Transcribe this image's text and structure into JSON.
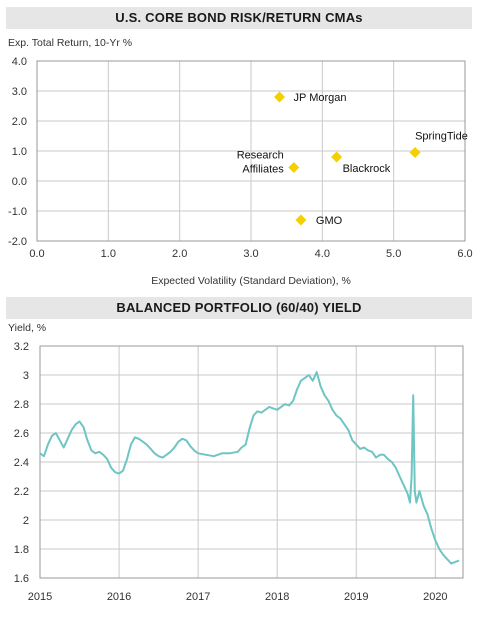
{
  "chart_data": [
    {
      "type": "scatter",
      "title": "U.S. CORE BOND RISK/RETURN CMAs",
      "ylabel": "Exp. Total Return, 10-Yr %",
      "xlabel": "Expected Volatility (Standard Deviation), %",
      "xlim": [
        0,
        6
      ],
      "ylim": [
        -2,
        4
      ],
      "x_ticks": [
        "0.0",
        "1.0",
        "2.0",
        "3.0",
        "4.0",
        "5.0",
        "6.0"
      ],
      "y_ticks": [
        "-2.0",
        "-1.0",
        "0.0",
        "1.0",
        "2.0",
        "3.0",
        "4.0"
      ],
      "grid": true,
      "marker_color": "#f5d000",
      "points": [
        {
          "name": "JP Morgan",
          "label_lines": [
            "JP Morgan"
          ],
          "x": 3.4,
          "y": 2.8
        },
        {
          "name": "SpringTide",
          "label_lines": [
            "SpringTide"
          ],
          "x": 5.3,
          "y": 0.95
        },
        {
          "name": "Blackrock",
          "label_lines": [
            "Blackrock"
          ],
          "x": 4.2,
          "y": 0.8
        },
        {
          "name": "Research Affiliates",
          "label_lines": [
            "Research",
            "Affiliates"
          ],
          "x": 3.6,
          "y": 0.45
        },
        {
          "name": "GMO",
          "label_lines": [
            "GMO"
          ],
          "x": 3.7,
          "y": -1.3
        }
      ]
    },
    {
      "type": "line",
      "title": "BALANCED PORTFOLIO (60/40) YIELD",
      "ylabel": "Yield, %",
      "xlabel": "",
      "xlim": [
        2015.0,
        2020.35
      ],
      "ylim": [
        1.6,
        3.2
      ],
      "x_ticks": [
        "2015",
        "2016",
        "2017",
        "2018",
        "2019",
        "2020"
      ],
      "y_ticks": [
        "1.6",
        "1.8",
        "2",
        "2.2",
        "2.4",
        "2.6",
        "2.8",
        "3",
        "3.2"
      ],
      "grid": true,
      "line_color": "#6fc5c4",
      "x": [
        2015.0,
        2015.05,
        2015.1,
        2015.15,
        2015.2,
        2015.25,
        2015.3,
        2015.35,
        2015.4,
        2015.45,
        2015.5,
        2015.55,
        2015.6,
        2015.65,
        2015.7,
        2015.75,
        2015.8,
        2015.85,
        2015.9,
        2015.95,
        2016.0,
        2016.05,
        2016.1,
        2016.15,
        2016.2,
        2016.25,
        2016.3,
        2016.35,
        2016.4,
        2016.45,
        2016.5,
        2016.55,
        2016.6,
        2016.65,
        2016.7,
        2016.75,
        2016.8,
        2016.85,
        2016.9,
        2016.95,
        2017.0,
        2017.1,
        2017.2,
        2017.3,
        2017.4,
        2017.5,
        2017.55,
        2017.6,
        2017.65,
        2017.7,
        2017.75,
        2017.8,
        2017.85,
        2017.9,
        2017.95,
        2018.0,
        2018.05,
        2018.1,
        2018.15,
        2018.2,
        2018.25,
        2018.3,
        2018.35,
        2018.4,
        2018.45,
        2018.5,
        2018.55,
        2018.6,
        2018.65,
        2018.7,
        2018.75,
        2018.8,
        2018.85,
        2018.9,
        2018.95,
        2019.0,
        2019.05,
        2019.1,
        2019.15,
        2019.2,
        2019.25,
        2019.3,
        2019.35,
        2019.4,
        2019.45,
        2019.5,
        2019.55,
        2019.6,
        2019.65,
        2019.68,
        2019.7,
        2019.72,
        2019.74,
        2019.76,
        2019.8,
        2019.85,
        2019.9,
        2019.95,
        2020.0,
        2020.05,
        2020.1,
        2020.15,
        2020.2,
        2020.25,
        2020.3
      ],
      "values": [
        2.46,
        2.44,
        2.52,
        2.58,
        2.6,
        2.55,
        2.5,
        2.56,
        2.62,
        2.66,
        2.68,
        2.64,
        2.55,
        2.48,
        2.46,
        2.47,
        2.45,
        2.42,
        2.36,
        2.33,
        2.32,
        2.34,
        2.42,
        2.52,
        2.57,
        2.56,
        2.54,
        2.52,
        2.49,
        2.46,
        2.44,
        2.43,
        2.45,
        2.47,
        2.5,
        2.54,
        2.56,
        2.55,
        2.51,
        2.48,
        2.46,
        2.45,
        2.44,
        2.46,
        2.46,
        2.47,
        2.5,
        2.52,
        2.63,
        2.72,
        2.75,
        2.74,
        2.76,
        2.78,
        2.77,
        2.76,
        2.78,
        2.8,
        2.79,
        2.82,
        2.9,
        2.96,
        2.98,
        3.0,
        2.96,
        3.02,
        2.92,
        2.86,
        2.82,
        2.76,
        2.72,
        2.7,
        2.66,
        2.62,
        2.55,
        2.52,
        2.49,
        2.5,
        2.48,
        2.47,
        2.43,
        2.45,
        2.45,
        2.42,
        2.4,
        2.36,
        2.3,
        2.24,
        2.18,
        2.12,
        2.3,
        2.86,
        2.2,
        2.12,
        2.2,
        2.1,
        2.04,
        1.94,
        1.86,
        1.8,
        1.76,
        1.73,
        1.7,
        1.71,
        1.72
      ]
    }
  ]
}
